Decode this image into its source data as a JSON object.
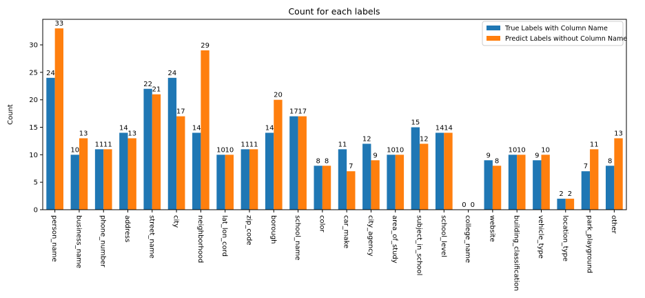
{
  "chart_data": {
    "type": "bar",
    "title": "Count for each labels",
    "xlabel": "",
    "ylabel": "Count",
    "ylim": [
      0,
      34.65
    ],
    "yticks": [
      0,
      5,
      10,
      15,
      20,
      25,
      30
    ],
    "grid": false,
    "legend_position": "top-right",
    "categories": [
      "person_name",
      "business_name",
      "phone_number",
      "address",
      "street_name",
      "city",
      "neighborhood",
      "lat_lon_cord",
      "zip_code",
      "borough",
      "school_name",
      "color",
      "car_make",
      "city_agency",
      "area_of_study",
      "subject_in_school",
      "school_level",
      "college_name",
      "website",
      "building_classification",
      "vehicle_type",
      "location_type",
      "park_playground",
      "other"
    ],
    "series": [
      {
        "name": "True Labels with Column Name",
        "color": "#1f77b4",
        "values": [
          24,
          10,
          11,
          14,
          22,
          24,
          14,
          10,
          11,
          14,
          17,
          8,
          11,
          12,
          10,
          15,
          14,
          0,
          9,
          10,
          9,
          2,
          7,
          8
        ]
      },
      {
        "name": "Predict Labels without Column Name",
        "color": "#ff7f0e",
        "values": [
          33,
          13,
          11,
          13,
          21,
          17,
          29,
          10,
          11,
          20,
          17,
          8,
          7,
          9,
          10,
          12,
          14,
          0,
          8,
          10,
          10,
          2,
          11,
          13
        ]
      }
    ]
  }
}
